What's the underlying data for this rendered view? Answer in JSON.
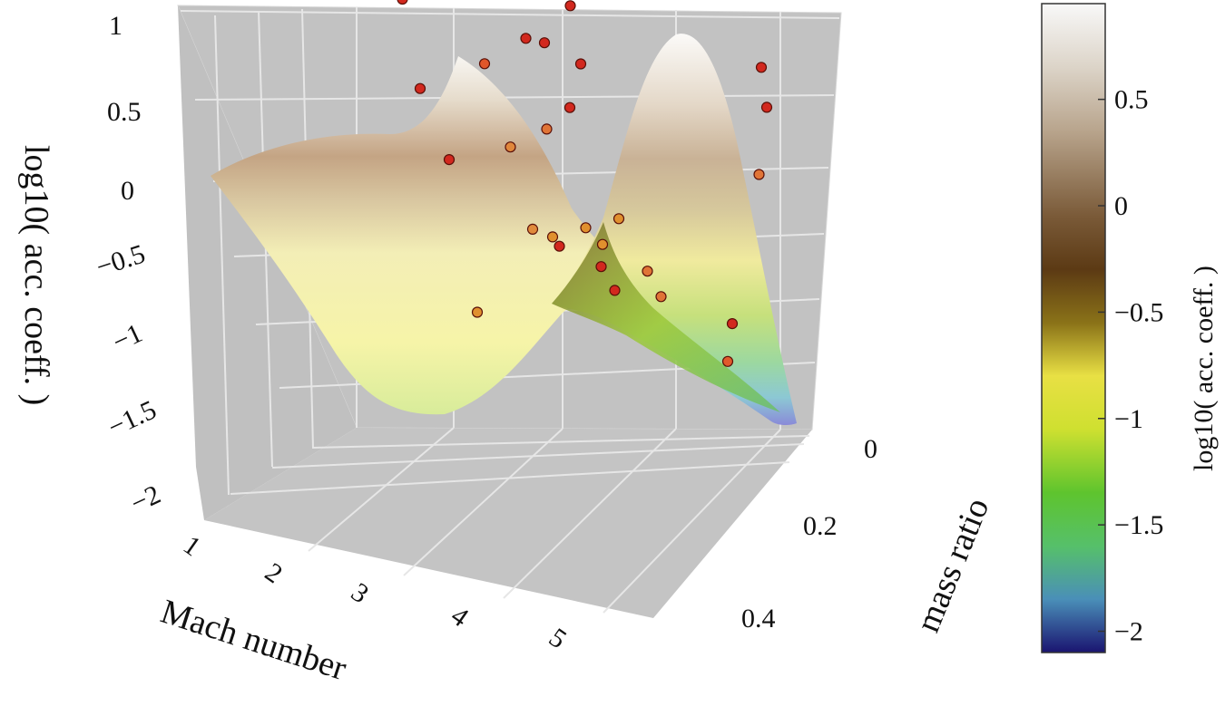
{
  "chart_data": {
    "type": "surface3d",
    "title": "",
    "x_axis": {
      "label": "Mach number",
      "ticks": [
        "1",
        "2",
        "3",
        "4",
        "5"
      ],
      "range": [
        1,
        5.5
      ]
    },
    "y_axis": {
      "label": "mass ratio",
      "ticks": [
        "0",
        "0.2",
        "0.4"
      ],
      "range": [
        0,
        0.5
      ]
    },
    "z_axis": {
      "label": "log10( acc. coeff. )",
      "ticks": [
        "1",
        "0.5",
        "0",
        "−0.5",
        "−1",
        "−1.5",
        "−2"
      ],
      "range": [
        -2,
        1
      ]
    },
    "colorbar": {
      "label": "log10( acc. coeff. )",
      "ticks": [
        "0.5",
        "0",
        "−0.5",
        "−1",
        "−1.5",
        "−2"
      ],
      "tick_values": [
        0.5,
        0,
        -0.5,
        -1,
        -1.5,
        -2
      ],
      "range": [
        -2.1,
        0.95
      ],
      "stops": [
        {
          "value": -2.1,
          "color": "#1a1470"
        },
        {
          "value": -1.85,
          "color": "#4a8fb8"
        },
        {
          "value": -1.6,
          "color": "#56c06a"
        },
        {
          "value": -1.35,
          "color": "#5ec42e"
        },
        {
          "value": -1.05,
          "color": "#cfe030"
        },
        {
          "value": -0.8,
          "color": "#e8e044"
        },
        {
          "value": -0.55,
          "color": "#8a7218"
        },
        {
          "value": -0.3,
          "color": "#5c3a14"
        },
        {
          "value": -0.05,
          "color": "#7a5a38"
        },
        {
          "value": 0.35,
          "color": "#b8a48c"
        },
        {
          "value": 0.65,
          "color": "#dcd4c8"
        },
        {
          "value": 0.95,
          "color": "#f8f8f8"
        }
      ]
    },
    "scatter_points": [
      {
        "mach": 1.55,
        "mass_ratio": 0.05,
        "log_acc": 0.25,
        "color": "#d2281e"
      },
      {
        "mach": 1.65,
        "mass_ratio": 0.08,
        "log_acc": 0.22,
        "color": "#d2281e"
      },
      {
        "mach": 2.3,
        "mass_ratio": 0.02,
        "log_acc": 0.38,
        "color": "#d2281e"
      },
      {
        "mach": 2.45,
        "mass_ratio": 0.04,
        "log_acc": 0.34,
        "color": "#d2281e"
      },
      {
        "mach": 2.55,
        "mass_ratio": 0.03,
        "log_acc": 0.4,
        "color": "#d2281e"
      },
      {
        "mach": 2.7,
        "mass_ratio": 0.05,
        "log_acc": 0.37,
        "color": "#d2281e"
      },
      {
        "mach": 2.8,
        "mass_ratio": 0.04,
        "log_acc": 0.41,
        "color": "#d2281e"
      },
      {
        "mach": 2.95,
        "mass_ratio": 0.06,
        "log_acc": 0.38,
        "color": "#d2281e"
      },
      {
        "mach": 3.0,
        "mass_ratio": 0.04,
        "log_acc": 0.43,
        "color": "#d2281e"
      },
      {
        "mach": 3.15,
        "mass_ratio": 0.05,
        "log_acc": 0.44,
        "color": "#d2281e"
      },
      {
        "mach": 3.3,
        "mass_ratio": 0.07,
        "log_acc": 0.37,
        "color": "#d2281e"
      },
      {
        "mach": 2.95,
        "mass_ratio": 0.1,
        "log_acc": 0.2,
        "color": "#d2281e"
      },
      {
        "mach": 3.2,
        "mass_ratio": 0.12,
        "log_acc": 0.25,
        "color": "#d2281e"
      },
      {
        "mach": 3.5,
        "mass_ratio": 0.1,
        "log_acc": 0.12,
        "color": "#d2281e"
      },
      {
        "mach": 2.6,
        "mass_ratio": 0.12,
        "log_acc": 0.05,
        "color": "#e0562a"
      },
      {
        "mach": 2.05,
        "mass_ratio": 0.15,
        "log_acc": -0.1,
        "color": "#d2281e"
      },
      {
        "mach": 3.35,
        "mass_ratio": 0.16,
        "log_acc": -0.15,
        "color": "#e07436"
      },
      {
        "mach": 3.55,
        "mass_ratio": 0.15,
        "log_acc": -0.02,
        "color": "#d2281e"
      },
      {
        "mach": 3.05,
        "mass_ratio": 0.18,
        "log_acc": -0.25,
        "color": "#e0873c"
      },
      {
        "mach": 2.5,
        "mass_ratio": 0.2,
        "log_acc": -0.35,
        "color": "#d2281e"
      },
      {
        "mach": 3.4,
        "mass_ratio": 0.22,
        "log_acc": -0.6,
        "color": "#e08a3c"
      },
      {
        "mach": 3.6,
        "mass_ratio": 0.22,
        "log_acc": -0.62,
        "color": "#e0902e"
      },
      {
        "mach": 3.9,
        "mass_ratio": 0.21,
        "log_acc": -0.55,
        "color": "#e0902e"
      },
      {
        "mach": 3.7,
        "mass_ratio": 0.23,
        "log_acc": -0.64,
        "color": "#d2281e"
      },
      {
        "mach": 4.1,
        "mass_ratio": 0.22,
        "log_acc": -0.6,
        "color": "#e0902e"
      },
      {
        "mach": 4.2,
        "mass_ratio": 0.2,
        "log_acc": -0.48,
        "color": "#e0902e"
      },
      {
        "mach": 4.15,
        "mass_ratio": 0.24,
        "log_acc": -0.68,
        "color": "#d2281e"
      },
      {
        "mach": 4.35,
        "mass_ratio": 0.26,
        "log_acc": -0.75,
        "color": "#d2281e"
      },
      {
        "mach": 3.1,
        "mass_ratio": 0.3,
        "log_acc": -0.95,
        "color": "#e0902e"
      },
      {
        "mach": 4.55,
        "mass_ratio": 0.22,
        "log_acc": -0.7,
        "color": "#e07436"
      },
      {
        "mach": 4.75,
        "mass_ratio": 0.24,
        "log_acc": -0.78,
        "color": "#e07436"
      },
      {
        "mach": 5.15,
        "mass_ratio": 0.05,
        "log_acc": 0.2,
        "color": "#d2281e"
      },
      {
        "mach": 5.3,
        "mass_ratio": 0.08,
        "log_acc": 0.05,
        "color": "#d2281e"
      },
      {
        "mach": 5.35,
        "mass_ratio": 0.12,
        "log_acc": -0.25,
        "color": "#e07436"
      },
      {
        "mach": 5.4,
        "mass_ratio": 0.22,
        "log_acc": -0.9,
        "color": "#d2281e"
      },
      {
        "mach": 5.45,
        "mass_ratio": 0.25,
        "log_acc": -1.05,
        "color": "#e05a2c"
      }
    ]
  }
}
